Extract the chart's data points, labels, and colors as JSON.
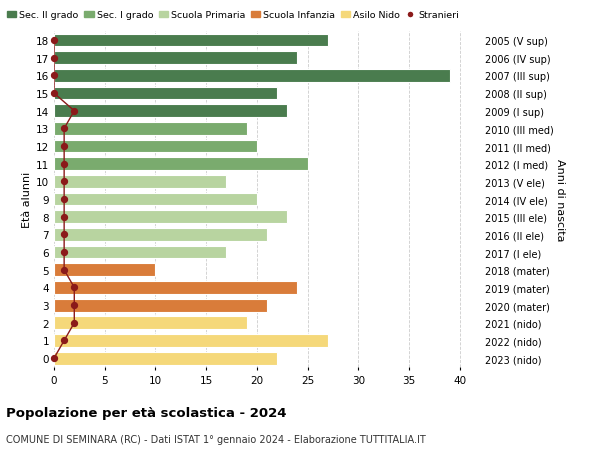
{
  "ages": [
    18,
    17,
    16,
    15,
    14,
    13,
    12,
    11,
    10,
    9,
    8,
    7,
    6,
    5,
    4,
    3,
    2,
    1,
    0
  ],
  "years": [
    "2005 (V sup)",
    "2006 (IV sup)",
    "2007 (III sup)",
    "2008 (II sup)",
    "2009 (I sup)",
    "2010 (III med)",
    "2011 (II med)",
    "2012 (I med)",
    "2013 (V ele)",
    "2014 (IV ele)",
    "2015 (III ele)",
    "2016 (II ele)",
    "2017 (I ele)",
    "2018 (mater)",
    "2019 (mater)",
    "2020 (mater)",
    "2021 (nido)",
    "2022 (nido)",
    "2023 (nido)"
  ],
  "values": [
    27,
    24,
    39,
    22,
    23,
    19,
    20,
    25,
    17,
    20,
    23,
    21,
    17,
    10,
    24,
    21,
    19,
    27,
    22
  ],
  "stranieri": [
    0,
    0,
    0,
    0,
    2,
    1,
    1,
    1,
    1,
    1,
    1,
    1,
    1,
    1,
    2,
    2,
    2,
    1,
    0
  ],
  "bar_colors": [
    "#4a7c4e",
    "#4a7c4e",
    "#4a7c4e",
    "#4a7c4e",
    "#4a7c4e",
    "#7aab6e",
    "#7aab6e",
    "#7aab6e",
    "#b8d4a0",
    "#b8d4a0",
    "#b8d4a0",
    "#b8d4a0",
    "#b8d4a0",
    "#d97c3a",
    "#d97c3a",
    "#d97c3a",
    "#f5d87a",
    "#f5d87a",
    "#f5d87a"
  ],
  "legend_labels": [
    "Sec. II grado",
    "Sec. I grado",
    "Scuola Primaria",
    "Scuola Infanzia",
    "Asilo Nido",
    "Stranieri"
  ],
  "legend_colors": [
    "#4a7c4e",
    "#7aab6e",
    "#b8d4a0",
    "#d97c3a",
    "#f5d87a",
    "#8b1a1a"
  ],
  "stranieri_color": "#8b1a1a",
  "title": "Popolazione per età scolastica - 2024",
  "subtitle": "COMUNE DI SEMINARA (RC) - Dati ISTAT 1° gennaio 2024 - Elaborazione TUTTITALIA.IT",
  "ylabel_left": "Età alunni",
  "ylabel_right": "Anni di nascita",
  "xlim": [
    0,
    42
  ],
  "xticks": [
    0,
    5,
    10,
    15,
    20,
    25,
    30,
    35,
    40
  ],
  "background_color": "#ffffff",
  "grid_color": "#cccccc"
}
